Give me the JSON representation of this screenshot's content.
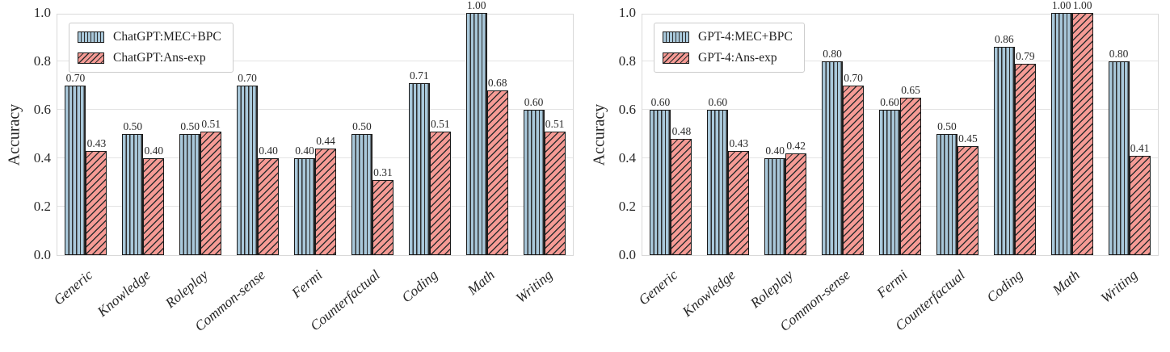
{
  "chart_data": [
    {
      "type": "bar",
      "title": "",
      "categories": [
        "Generic",
        "Knowledge",
        "Roleplay",
        "Common-sense",
        "Fermi",
        "Counterfactual",
        "Coding",
        "Math",
        "Writing"
      ],
      "series": [
        {
          "name": "ChatGPT:MEC+BPC",
          "values": [
            0.7,
            0.5,
            0.5,
            0.7,
            0.4,
            0.5,
            0.71,
            1.0,
            0.6
          ]
        },
        {
          "name": "ChatGPT:Ans-exp",
          "values": [
            0.43,
            0.4,
            0.51,
            0.4,
            0.44,
            0.31,
            0.51,
            0.68,
            0.51
          ]
        }
      ],
      "xlabel": "",
      "ylabel": "Accuracy",
      "ylim": [
        0.0,
        1.0
      ],
      "yticks": [
        "0.0",
        "0.2",
        "0.4",
        "0.6",
        "0.8",
        "1.0"
      ],
      "grid": true,
      "legend_position": "upper-left",
      "bar_value_labels": true
    },
    {
      "type": "bar",
      "title": "",
      "categories": [
        "Generic",
        "Knowledge",
        "Roleplay",
        "Common-sense",
        "Fermi",
        "Counterfactual",
        "Coding",
        "Math",
        "Writing"
      ],
      "series": [
        {
          "name": "GPT-4:MEC+BPC",
          "values": [
            0.6,
            0.6,
            0.4,
            0.8,
            0.6,
            0.5,
            0.86,
            1.0,
            0.8
          ]
        },
        {
          "name": "GPT-4:Ans-exp",
          "values": [
            0.48,
            0.43,
            0.42,
            0.7,
            0.65,
            0.45,
            0.79,
            1.0,
            0.41
          ]
        }
      ],
      "xlabel": "",
      "ylabel": "Accuracy",
      "ylim": [
        0.0,
        1.0
      ],
      "yticks": [
        "0.0",
        "0.2",
        "0.4",
        "0.6",
        "0.8",
        "1.0"
      ],
      "grid": true,
      "legend_position": "upper-left",
      "bar_value_labels": true
    }
  ],
  "style": {
    "series_colors": [
      "#a9c8da",
      "#f69b95"
    ],
    "series_hatches": [
      "vertical-lines",
      "diagonal-lines"
    ],
    "bar_edge_color": "#1b1b1b",
    "grid_color": "#e4e4e4",
    "frame_color": "#d9d9d9"
  }
}
